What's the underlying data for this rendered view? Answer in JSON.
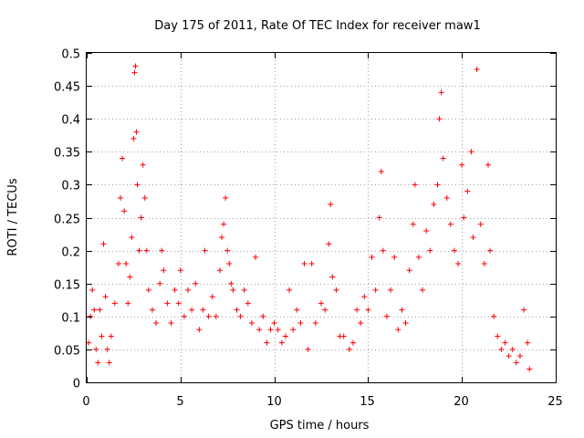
{
  "chart_data": {
    "type": "scatter",
    "title": "Day 175 of 2011, Rate Of TEC Index for receiver maw1",
    "xlabel": "GPS time / hours",
    "ylabel": "ROTI / TECUs",
    "xlim": [
      0,
      25
    ],
    "ylim": [
      0,
      0.5
    ],
    "xticks": [
      0,
      5,
      10,
      15,
      20,
      25
    ],
    "yticks": [
      0,
      0.05,
      0.1,
      0.15,
      0.2,
      0.25,
      0.3,
      0.35,
      0.4,
      0.45,
      0.5
    ],
    "grid": true,
    "marker": "plus",
    "color": "#ff0000",
    "points": [
      [
        0.1,
        0.06
      ],
      [
        0.2,
        0.1
      ],
      [
        0.3,
        0.14
      ],
      [
        0.4,
        0.11
      ],
      [
        0.5,
        0.05
      ],
      [
        0.6,
        0.03
      ],
      [
        0.7,
        0.11
      ],
      [
        0.8,
        0.07
      ],
      [
        0.9,
        0.21
      ],
      [
        1.0,
        0.13
      ],
      [
        1.1,
        0.05
      ],
      [
        1.2,
        0.03
      ],
      [
        1.3,
        0.07
      ],
      [
        1.5,
        0.12
      ],
      [
        1.7,
        0.18
      ],
      [
        1.8,
        0.28
      ],
      [
        1.9,
        0.34
      ],
      [
        2.0,
        0.26
      ],
      [
        2.1,
        0.18
      ],
      [
        2.2,
        0.12
      ],
      [
        2.3,
        0.16
      ],
      [
        2.4,
        0.22
      ],
      [
        2.5,
        0.37
      ],
      [
        2.6,
        0.48
      ],
      [
        2.55,
        0.47
      ],
      [
        2.65,
        0.38
      ],
      [
        2.7,
        0.3
      ],
      [
        2.8,
        0.2
      ],
      [
        2.9,
        0.25
      ],
      [
        3.0,
        0.33
      ],
      [
        3.1,
        0.28
      ],
      [
        3.2,
        0.2
      ],
      [
        3.3,
        0.14
      ],
      [
        3.5,
        0.11
      ],
      [
        3.7,
        0.09
      ],
      [
        3.9,
        0.15
      ],
      [
        4.0,
        0.2
      ],
      [
        4.1,
        0.17
      ],
      [
        4.3,
        0.12
      ],
      [
        4.5,
        0.09
      ],
      [
        4.7,
        0.14
      ],
      [
        4.9,
        0.12
      ],
      [
        5.0,
        0.17
      ],
      [
        5.2,
        0.1
      ],
      [
        5.4,
        0.14
      ],
      [
        5.6,
        0.11
      ],
      [
        5.8,
        0.15
      ],
      [
        6.0,
        0.08
      ],
      [
        6.2,
        0.11
      ],
      [
        6.3,
        0.2
      ],
      [
        6.5,
        0.1
      ],
      [
        6.7,
        0.13
      ],
      [
        6.9,
        0.1
      ],
      [
        7.1,
        0.17
      ],
      [
        7.2,
        0.22
      ],
      [
        7.3,
        0.24
      ],
      [
        7.4,
        0.28
      ],
      [
        7.5,
        0.2
      ],
      [
        7.6,
        0.18
      ],
      [
        7.7,
        0.15
      ],
      [
        7.8,
        0.14
      ],
      [
        8.0,
        0.11
      ],
      [
        8.2,
        0.1
      ],
      [
        8.4,
        0.14
      ],
      [
        8.6,
        0.12
      ],
      [
        8.8,
        0.09
      ],
      [
        9.0,
        0.19
      ],
      [
        9.2,
        0.08
      ],
      [
        9.4,
        0.1
      ],
      [
        9.6,
        0.06
      ],
      [
        9.8,
        0.08
      ],
      [
        10.0,
        0.09
      ],
      [
        10.2,
        0.08
      ],
      [
        10.4,
        0.06
      ],
      [
        10.6,
        0.07
      ],
      [
        10.8,
        0.14
      ],
      [
        11.0,
        0.08
      ],
      [
        11.2,
        0.11
      ],
      [
        11.4,
        0.09
      ],
      [
        11.6,
        0.18
      ],
      [
        11.8,
        0.05
      ],
      [
        12.0,
        0.18
      ],
      [
        12.2,
        0.09
      ],
      [
        12.5,
        0.12
      ],
      [
        12.7,
        0.11
      ],
      [
        12.9,
        0.21
      ],
      [
        13.0,
        0.27
      ],
      [
        13.1,
        0.16
      ],
      [
        13.3,
        0.14
      ],
      [
        13.5,
        0.07
      ],
      [
        13.7,
        0.07
      ],
      [
        14.0,
        0.05
      ],
      [
        14.2,
        0.06
      ],
      [
        14.4,
        0.11
      ],
      [
        14.6,
        0.09
      ],
      [
        14.8,
        0.13
      ],
      [
        15.0,
        0.11
      ],
      [
        15.2,
        0.19
      ],
      [
        15.4,
        0.14
      ],
      [
        15.6,
        0.25
      ],
      [
        15.7,
        0.32
      ],
      [
        15.8,
        0.2
      ],
      [
        16.0,
        0.1
      ],
      [
        16.2,
        0.14
      ],
      [
        16.4,
        0.19
      ],
      [
        16.6,
        0.08
      ],
      [
        16.8,
        0.11
      ],
      [
        17.0,
        0.09
      ],
      [
        17.2,
        0.17
      ],
      [
        17.4,
        0.24
      ],
      [
        17.5,
        0.3
      ],
      [
        17.7,
        0.19
      ],
      [
        17.9,
        0.14
      ],
      [
        18.1,
        0.23
      ],
      [
        18.3,
        0.2
      ],
      [
        18.5,
        0.27
      ],
      [
        18.7,
        0.3
      ],
      [
        18.8,
        0.4
      ],
      [
        18.9,
        0.44
      ],
      [
        19.0,
        0.34
      ],
      [
        19.2,
        0.28
      ],
      [
        19.4,
        0.24
      ],
      [
        19.6,
        0.2
      ],
      [
        19.8,
        0.18
      ],
      [
        20.0,
        0.33
      ],
      [
        20.1,
        0.25
      ],
      [
        20.3,
        0.29
      ],
      [
        20.5,
        0.35
      ],
      [
        20.6,
        0.22
      ],
      [
        20.8,
        0.475
      ],
      [
        21.0,
        0.24
      ],
      [
        21.2,
        0.18
      ],
      [
        21.4,
        0.33
      ],
      [
        21.5,
        0.2
      ],
      [
        21.7,
        0.1
      ],
      [
        21.9,
        0.07
      ],
      [
        22.1,
        0.05
      ],
      [
        22.3,
        0.06
      ],
      [
        22.5,
        0.04
      ],
      [
        22.7,
        0.05
      ],
      [
        22.9,
        0.03
      ],
      [
        23.1,
        0.04
      ],
      [
        23.3,
        0.11
      ],
      [
        23.5,
        0.06
      ],
      [
        23.6,
        0.02
      ]
    ]
  }
}
